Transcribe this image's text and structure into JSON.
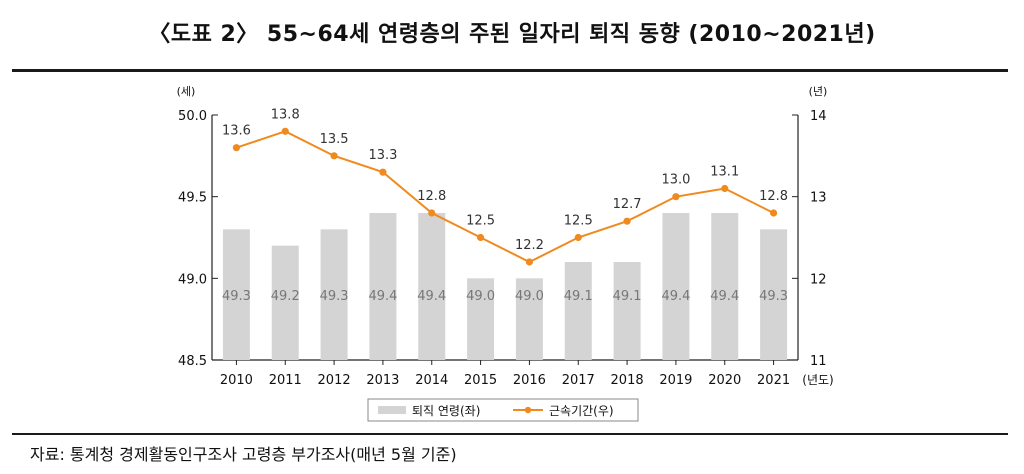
{
  "title": "〈도표 2〉 55~64세 연령층의 주된 일자리 퇴직 동향 (2010~2021년)",
  "source": "자료: 통계청 경제활동인구조사 고령층 부가조사(매년 5월 기준)",
  "colors": {
    "bar": "#d4d4d4",
    "line": "#f08a1e",
    "axis": "#222222",
    "bar_label": "#777777"
  },
  "chart_data": {
    "type": "bar",
    "categories": [
      "2010",
      "2011",
      "2012",
      "2013",
      "2014",
      "2015",
      "2016",
      "2017",
      "2018",
      "2019",
      "2020",
      "2021"
    ],
    "series": [
      {
        "name": "퇴직 연령(좌)",
        "type": "bar",
        "axis": "left",
        "values": [
          49.3,
          49.2,
          49.3,
          49.4,
          49.4,
          49.0,
          49.0,
          49.1,
          49.1,
          49.4,
          49.4,
          49.3
        ],
        "labels": [
          "49.3",
          "49.2",
          "49.3",
          "49.4",
          "49.4",
          "49.0",
          "49.0",
          "49.1",
          "49.1",
          "49.4",
          "49.4",
          "49.3"
        ]
      },
      {
        "name": "근속기간(우)",
        "type": "line",
        "axis": "right",
        "values": [
          13.6,
          13.8,
          13.5,
          13.3,
          12.8,
          12.5,
          12.2,
          12.5,
          12.7,
          13.0,
          13.1,
          12.8
        ],
        "labels": [
          "13.6",
          "13.8",
          "13.5",
          "13.3",
          "12.8",
          "12.5",
          "12.2",
          "12.5",
          "12.7",
          "13.0",
          "13.1",
          "12.8"
        ]
      }
    ],
    "y_left": {
      "unit": "(세)",
      "ylim": [
        48.5,
        50.0
      ],
      "ticks": [
        "48.5",
        "49.0",
        "49.5",
        "50.0"
      ]
    },
    "y_right": {
      "unit": "(년)",
      "ylim": [
        11,
        14
      ],
      "ticks": [
        "11",
        "12",
        "13",
        "14"
      ]
    },
    "x_unit": "(년도)",
    "legend_position": "bottom"
  }
}
